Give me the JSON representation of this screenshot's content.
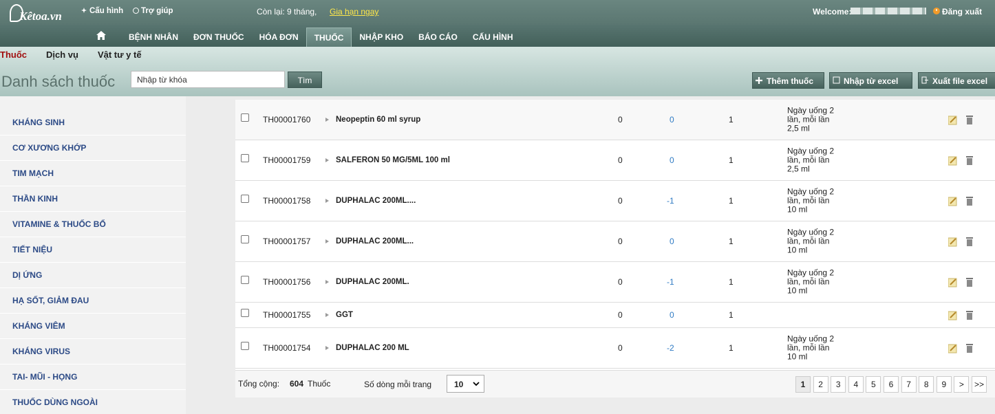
{
  "header": {
    "logo": "Kêtoa.vn",
    "config": "Cấu hình",
    "help": "Trợ giúp",
    "remaining": "Còn lại: 9 tháng,",
    "renew": "Gia hạn ngay",
    "welcome": "Welcome:",
    "logout": "Đăng xuất"
  },
  "nav": [
    {
      "label": "BỆNH NHÂN",
      "active": false
    },
    {
      "label": "ĐƠN THUỐC",
      "active": false
    },
    {
      "label": "HÓA ĐƠN",
      "active": false
    },
    {
      "label": "THUỐC",
      "active": true
    },
    {
      "label": "NHẬP KHO",
      "active": false
    },
    {
      "label": "BÁO CÁO",
      "active": false
    },
    {
      "label": "CẤU HÌNH",
      "active": false
    }
  ],
  "subnav": [
    {
      "label": "Thuốc",
      "active": true
    },
    {
      "label": "Dịch vụ",
      "active": false
    },
    {
      "label": "Vật tư y tế",
      "active": false
    }
  ],
  "toolbar": {
    "title": "Danh sách thuốc",
    "search_placeholder": "Nhập từ khóa",
    "search_button": "Tìm",
    "add": "Thêm thuốc",
    "import": "Nhập từ excel",
    "export": "Xuất file excel"
  },
  "sidebar": [
    "KHÁNG SINH",
    "CƠ XƯƠNG KHỚP",
    "TIM MẠCH",
    "THẦN KINH",
    "VITAMINE & THUỐC BỔ",
    "TIẾT NIỆU",
    "DỊ ỨNG",
    "HẠ SỐT, GIẢM ĐAU",
    "KHÁNG VIÊM",
    "KHÁNG VIRUS",
    "TAI- MŨI - HỌNG",
    "THUỐC DÙNG NGOÀI"
  ],
  "table": {
    "rows": [
      {
        "code": "TH00001760",
        "name": "Neopeptin 60 ml syrup",
        "c1": 0,
        "stock": 0,
        "c3": 1,
        "note": [
          "Ngày uống 2",
          "lần, mỗi lần",
          "2,5 ml"
        ]
      },
      {
        "code": "TH00001759",
        "name": "SALFERON 50 MG/5ML 100 ml",
        "c1": 0,
        "stock": 0,
        "c3": 1,
        "note": [
          "Ngày uống 2",
          "lần, mỗi lần",
          "2,5 ml"
        ]
      },
      {
        "code": "TH00001758",
        "name": "DUPHALAC 200ML....",
        "c1": 0,
        "stock": -1,
        "c3": 1,
        "note": [
          "Ngày uống 2",
          "lần, mỗi lần",
          "10 ml"
        ]
      },
      {
        "code": "TH00001757",
        "name": "DUPHALAC 200ML...",
        "c1": 0,
        "stock": 0,
        "c3": 1,
        "note": [
          "Ngày uống 2",
          "lần, mỗi lần",
          "10 ml"
        ]
      },
      {
        "code": "TH00001756",
        "name": "DUPHALAC 200ML.",
        "c1": 0,
        "stock": -1,
        "c3": 1,
        "note": [
          "Ngày uống 2",
          "lần, mỗi lần",
          "10 ml"
        ]
      },
      {
        "code": "TH00001755",
        "name": "GGT",
        "c1": 0,
        "stock": 0,
        "c3": 1,
        "note": []
      },
      {
        "code": "TH00001754",
        "name": "DUPHALAC 200 ML",
        "c1": 0,
        "stock": -2,
        "c3": 1,
        "note": [
          "Ngày uống 2",
          "lần, mỗi lần",
          "10 ml"
        ]
      }
    ]
  },
  "footer": {
    "total_label": "Tổng cộng:",
    "total": 604,
    "total_unit": "Thuốc",
    "page_size_label": "Số dòng mỗi trang",
    "page_size": 10,
    "pages": [
      1,
      2,
      3,
      4,
      5,
      6,
      7,
      8,
      9,
      ">",
      ">>"
    ]
  }
}
